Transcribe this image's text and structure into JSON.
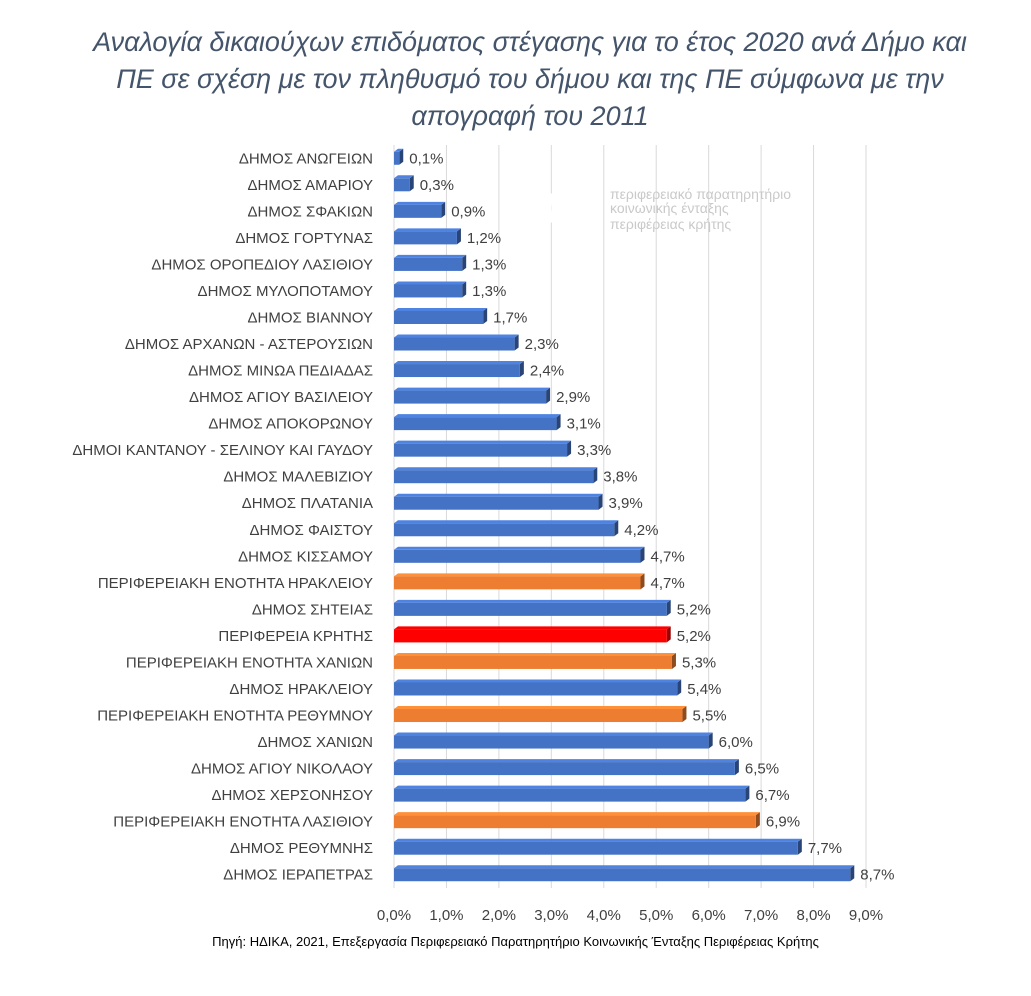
{
  "chart_data": {
    "type": "bar",
    "orientation": "horizontal",
    "title": "Αναλογία δικαιούχων επιδόματος στέγασης για το έτος 2020 ανά Δήμο και ΠΕ σε σχέση με τον πληθυσμό του δήμου και της ΠΕ σύμφωνα με την απογραφή του 2011",
    "categories": [
      "ΔΗΜΟΣ ΑΝΩΓΕΙΩΝ",
      "ΔΗΜΟΣ ΑΜΑΡΙΟΥ",
      "ΔΗΜΟΣ ΣΦΑΚΙΩΝ",
      "ΔΗΜΟΣ ΓΟΡΤΥΝΑΣ",
      "ΔΗΜΟΣ ΟΡΟΠΕΔΙΟΥ ΛΑΣΙΘΙΟΥ",
      "ΔΗΜΟΣ ΜΥΛΟΠΟΤΑΜΟΥ",
      "ΔΗΜΟΣ ΒΙΑΝΝΟΥ",
      "ΔΗΜΟΣ ΑΡΧΑΝΩΝ - ΑΣΤΕΡΟΥΣΙΩΝ",
      "ΔΗΜΟΣ ΜΙΝΩΑ ΠΕΔΙΑΔΑΣ",
      "ΔΗΜΟΣ ΑΓΙΟΥ ΒΑΣΙΛΕΙΟΥ",
      "ΔΗΜΟΣ ΑΠΟΚΟΡΩΝΟΥ",
      "ΔΗΜΟΙ ΚΑΝΤΑΝΟΥ - ΣΕΛΙΝΟΥ ΚΑΙ ΓΑΥΔΟΥ",
      "ΔΗΜΟΣ ΜΑΛΕΒΙΖΙΟΥ",
      "ΔΗΜΟΣ ΠΛΑΤΑΝΙΑ",
      "ΔΗΜΟΣ ΦΑΙΣΤΟΥ",
      "ΔΗΜΟΣ ΚΙΣΣΑΜΟΥ",
      "ΠΕΡΙΦΕΡΕΙΑΚΗ ΕΝΟΤΗΤΑ ΗΡΑΚΛΕΙΟΥ",
      "ΔΗΜΟΣ ΣΗΤΕΙΑΣ",
      "ΠΕΡΙΦΕΡΕΙΑ ΚΡΗΤΗΣ",
      "ΠΕΡΙΦΕΡΕΙΑΚΗ ΕΝΟΤΗΤΑ ΧΑΝΙΩΝ",
      "ΔΗΜΟΣ ΗΡΑΚΛΕΙΟΥ",
      "ΠΕΡΙΦΕΡΕΙΑΚΗ ΕΝΟΤΗΤΑ ΡΕΘΥΜΝΟΥ",
      "ΔΗΜΟΣ ΧΑΝΙΩΝ",
      "ΔΗΜΟΣ ΑΓΙΟΥ ΝΙΚΟΛΑΟΥ",
      "ΔΗΜΟΣ ΧΕΡΣΟΝΗΣΟΥ",
      "ΠΕΡΙΦΕΡΕΙΑΚΗ ΕΝΟΤΗΤΑ ΛΑΣΙΘΙΟΥ",
      "ΔΗΜΟΣ ΡΕΘΥΜΝΗΣ",
      "ΔΗΜΟΣ ΙΕΡΑΠΕΤΡΑΣ"
    ],
    "values": [
      0.1,
      0.3,
      0.9,
      1.2,
      1.3,
      1.3,
      1.7,
      2.3,
      2.4,
      2.9,
      3.1,
      3.3,
      3.8,
      3.9,
      4.2,
      4.7,
      4.7,
      5.2,
      5.2,
      5.3,
      5.4,
      5.5,
      6.0,
      6.5,
      6.7,
      6.9,
      7.7,
      8.7
    ],
    "value_labels": [
      "0,1%",
      "0,3%",
      "0,9%",
      "1,2%",
      "1,3%",
      "1,3%",
      "1,7%",
      "2,3%",
      "2,4%",
      "2,9%",
      "3,1%",
      "3,3%",
      "3,8%",
      "3,9%",
      "4,2%",
      "4,7%",
      "4,7%",
      "5,2%",
      "5,2%",
      "5,3%",
      "5,4%",
      "5,5%",
      "6,0%",
      "6,5%",
      "6,7%",
      "6,9%",
      "7,7%",
      "8,7%"
    ],
    "bar_kinds": [
      "dimos",
      "dimos",
      "dimos",
      "dimos",
      "dimos",
      "dimos",
      "dimos",
      "dimos",
      "dimos",
      "dimos",
      "dimos",
      "dimos",
      "dimos",
      "dimos",
      "dimos",
      "dimos",
      "pe",
      "dimos",
      "region",
      "pe",
      "dimos",
      "pe",
      "dimos",
      "dimos",
      "dimos",
      "pe",
      "dimos",
      "dimos"
    ],
    "colors": {
      "dimos": "#4472c4",
      "pe": "#ed7d31",
      "region": "#ff0000"
    },
    "xlim": [
      0,
      9
    ],
    "x_ticks": [
      0,
      1,
      2,
      3,
      4,
      5,
      6,
      7,
      8,
      9
    ],
    "x_tick_labels": [
      "0,0%",
      "1,0%",
      "2,0%",
      "3,0%",
      "4,0%",
      "5,0%",
      "6,0%",
      "7,0%",
      "8,0%",
      "9,0%"
    ],
    "grid": "vertical",
    "legend": "none"
  },
  "source_note": "Πηγή: ΗΔΙΚΑ, 2021, Επεξεργασία Περιφερειακό Παρατηρητήριο Κοινωνικής Ένταξης Περιφέρειας Κρήτης",
  "logo": {
    "line1": "περιφερειακό παρατηρητήριο",
    "line2": "κοινωνικής ένταξης",
    "line3": "περιφέρειας κρήτης"
  }
}
